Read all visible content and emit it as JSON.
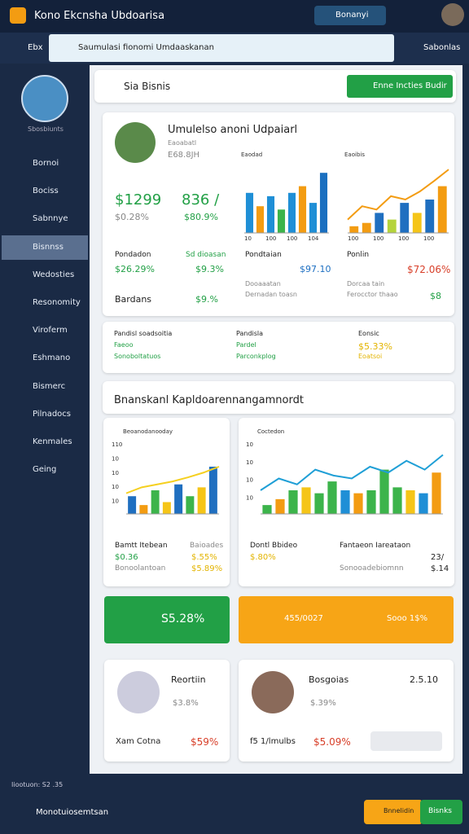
{
  "header": {
    "title": "Kono Ekcnsha Ubdoarisa",
    "dropdown": "Bonanyi"
  },
  "toolbar": {
    "home": "Ebx",
    "search": "Saumulasi fionomi Umdaaskanan",
    "user": "Sabonlas"
  },
  "sidebar": {
    "caption": "Sbosbiunts",
    "items": [
      "Bornoi",
      "Bociss",
      "Sabnnye",
      "Bisnnss",
      "Wedosties",
      "Resonomity",
      "Viroferm",
      "Eshmano",
      "Bismerc",
      "Pilnadocs",
      "Kenmales",
      "Geing"
    ],
    "active": 3
  },
  "tab": {
    "title": "Sia Bisnis",
    "button": "Enne Incties Budir"
  },
  "summary": {
    "title": "Umulelso anoni Udpaiarl",
    "sub1": "Eaoabatl",
    "sub2": "E68.8JH",
    "v1": "$1299",
    "v2": "836 /",
    "v3": "$0.28%",
    "v4": "$80.9%",
    "l1": "Pondadon",
    "l2": "Sd dioasan",
    "v5": "$26.29%",
    "v6": "$9.3%",
    "l3": "Bardans",
    "v7": "$9.%",
    "a_label": "Pondtaian",
    "a_value": "$97.10",
    "a_sub1": "Dooaaatan",
    "a_sub2": "Dernadan toasn",
    "b_label": "Ponlin",
    "b_value": "$72.06%",
    "b_sub1": "Dorcaa tain",
    "b_sub2": "Ferocctor thaao",
    "b_value2": "$8"
  },
  "row": [
    [
      "Pandisl soadsoitia",
      "Faeoo",
      "Sonoboltatuos"
    ],
    [
      "Pandisla",
      "Pardel",
      "Parconkplog"
    ],
    [
      "Eonsic",
      "$5.33%",
      "Eoatsoi"
    ]
  ],
  "section": {
    "title": "Bnanskanl Kapldoarennangamnordt",
    "left": {
      "l1": "Bamtt Itebean",
      "l2": "Baioades",
      "v1": "$0.36",
      "v2": "$.55%",
      "l3": "Bonoolantoan",
      "v3": "$5.89%"
    },
    "right": {
      "l1": "Dontl Bbideo",
      "l2": "Fantaeon Iareataon",
      "v1": "$.80%",
      "v2": "23/",
      "l3": "Sonooadebiomnn",
      "v3": "$.14"
    }
  },
  "charts": [
    {
      "title": "Eaodad",
      "ylim": [
        0,
        100
      ],
      "bars": [
        60,
        40,
        55,
        35,
        60,
        70,
        45,
        90
      ],
      "colors": [
        "#1f8fd6",
        "#f39c12",
        "#1f8fd6",
        "#3cb44b",
        "#1f8fd6",
        "#f39c12",
        "#1f8fd6",
        "#1a6fc0"
      ],
      "xlabels": [
        "10",
        "100",
        "100",
        "104"
      ]
    },
    {
      "title": "Eaoibis",
      "ylim": [
        0,
        100
      ],
      "bars": [
        10,
        15,
        30,
        20,
        45,
        30,
        50,
        70
      ],
      "colors": [
        "#f39c12",
        "#f39c12",
        "#1f6fc0",
        "#b5d43b",
        "#1f6fc0",
        "#f5c518",
        "#1f6fc0",
        "#f39c12"
      ],
      "line": [
        20,
        40,
        35,
        55,
        50,
        62,
        78,
        95
      ],
      "linecolor": "#f39c12",
      "xlabels": [
        "100",
        "100",
        "100",
        "100"
      ]
    },
    {
      "title": "Beoanodanooday",
      "ylim": [
        0,
        120
      ],
      "bars": [
        30,
        15,
        40,
        20,
        50,
        30,
        45,
        80
      ],
      "colors": [
        "#1f6fc0",
        "#f39c12",
        "#3cb44b",
        "#f5c518",
        "#1f6fc0",
        "#3cb44b",
        "#f5c518",
        "#1f6fc0"
      ],
      "line": [
        35,
        45,
        50,
        55,
        62,
        70,
        80
      ],
      "linecolor": "#f5d020",
      "yticks": [
        "110",
        "10",
        "10",
        "10",
        "10"
      ]
    },
    {
      "title": "Coctedon",
      "ylim": [
        0,
        120
      ],
      "bars": [
        15,
        25,
        40,
        45,
        35,
        55,
        40,
        35,
        40,
        75,
        45,
        40,
        35,
        70
      ],
      "colors": [
        "#3cb44b",
        "#f39c12",
        "#3cb44b",
        "#f5c518",
        "#3cb44b",
        "#3cb44b",
        "#1f8fd6",
        "#f39c12",
        "#3cb44b",
        "#3cb44b",
        "#3cb44b",
        "#f5c518",
        "#1f8fd6",
        "#f39c12"
      ],
      "line": [
        40,
        60,
        50,
        75,
        65,
        60,
        80,
        70,
        90,
        75,
        100
      ],
      "linecolor": "#1f9fd6",
      "yticks": [
        "10",
        "10",
        "10",
        "10"
      ]
    }
  ],
  "tiles": {
    "green": "S5.28%",
    "orange": "455/0027",
    "orange2": "Sooo 1$%"
  },
  "people": [
    {
      "name": "Reortiin",
      "v1": "$3.8%",
      "l2": "Xam Cotna",
      "v2": "$59%"
    },
    {
      "name": "Bosgoias",
      "v0": "2.5.10",
      "v1": "$.39%",
      "l2": "f5 1/lmulbs",
      "v2": "$5.09%"
    }
  ],
  "footer": {
    "status": "Iiootuon: S2 .35",
    "label": "Monotuiosemtsan",
    "btn1": "Bnnelidin",
    "btn2": "Bisnks"
  }
}
